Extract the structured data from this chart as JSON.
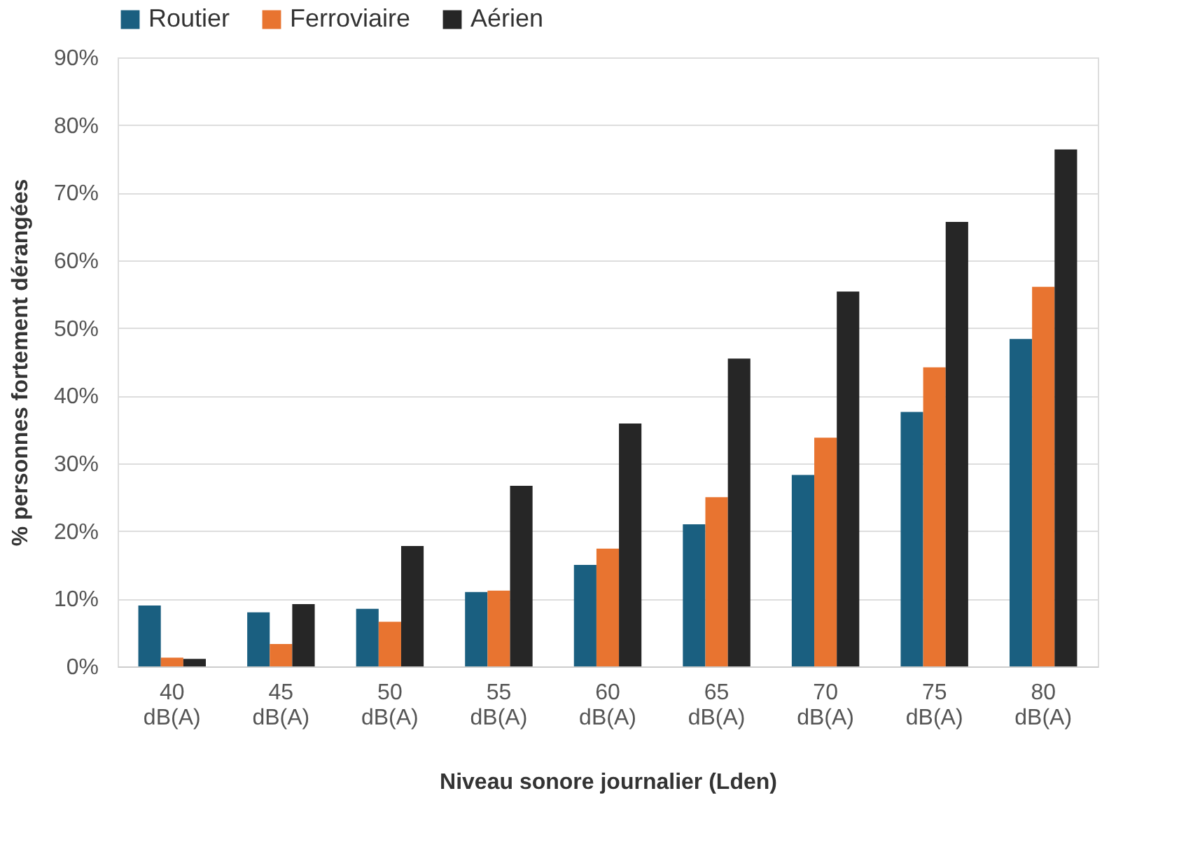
{
  "chart_data": {
    "type": "bar",
    "xlabel": "Niveau sonore journalier (Lden)",
    "ylabel": "% personnes fortement dérangées",
    "categories": [
      "40 dB(A)",
      "45 dB(A)",
      "50 dB(A)",
      "55 dB(A)",
      "60 dB(A)",
      "65 dB(A)",
      "70 dB(A)",
      "75 dB(A)",
      "80 dB(A)"
    ],
    "series": [
      {
        "name": "Routier",
        "color": "#1a5f80",
        "values": [
          9,
          8,
          8.5,
          11,
          15,
          21,
          28.3,
          37.6,
          48.4
        ]
      },
      {
        "name": "Ferroviaire",
        "color": "#e87430",
        "values": [
          1.3,
          3.3,
          6.6,
          11.2,
          17.4,
          25,
          33.8,
          44.2,
          56.1
        ]
      },
      {
        "name": "Aérien",
        "color": "#262626",
        "values": [
          1.1,
          9.2,
          17.8,
          26.7,
          35.9,
          45.5,
          55.4,
          65.7,
          76.4
        ]
      }
    ],
    "ylim": [
      0,
      90
    ],
    "yticks": [
      {
        "value": 0,
        "label": "0%"
      },
      {
        "value": 10,
        "label": "10%"
      },
      {
        "value": 20,
        "label": "20%"
      },
      {
        "value": 30,
        "label": "30%"
      },
      {
        "value": 40,
        "label": "40%"
      },
      {
        "value": 50,
        "label": "50%"
      },
      {
        "value": 60,
        "label": "60%"
      },
      {
        "value": 70,
        "label": "70%"
      },
      {
        "value": 80,
        "label": "80%"
      },
      {
        "value": 90,
        "label": "90%"
      }
    ],
    "grid": "y",
    "legend": "top"
  }
}
